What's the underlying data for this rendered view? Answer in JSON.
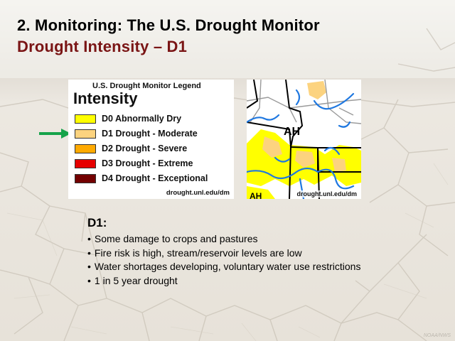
{
  "slide": {
    "title_line1": "2. Monitoring:  The U.S. Drought Monitor",
    "title_line2": "Drought Intensity – D1",
    "colors": {
      "title_line1": "#000000",
      "title_line2": "#7a1515",
      "arrow": "#16a34a"
    }
  },
  "legend": {
    "heading": "U.S. Drought Monitor Legend",
    "subheading": "Intensity",
    "source": "drought.unl.edu/dm",
    "items": [
      {
        "label": "D0 Abnormally Dry",
        "color": "#ffff00"
      },
      {
        "label": "D1 Drought - Moderate",
        "color": "#fcd37f"
      },
      {
        "label": "D2 Drought - Severe",
        "color": "#ffaa00"
      },
      {
        "label": "D3 Drought - Extreme",
        "color": "#e60000"
      },
      {
        "label": "D4 Drought - Exceptional",
        "color": "#730000"
      }
    ],
    "highlighted": "D1 Drought - Moderate",
    "pointer_icon": "right-arrow-icon"
  },
  "map": {
    "labels": {
      "impact_primary": "AH",
      "impact_secondary": "AH"
    },
    "source": "drought.unl.edu/dm"
  },
  "notes": {
    "heading": "D1:",
    "bullets": [
      "Some damage to crops and pastures",
      "Fire risk is high, stream/reservoir levels are low",
      "Water shortages developing, voluntary water use restrictions",
      "1 in 5 year drought"
    ]
  },
  "credit": "NOAA/NWS"
}
